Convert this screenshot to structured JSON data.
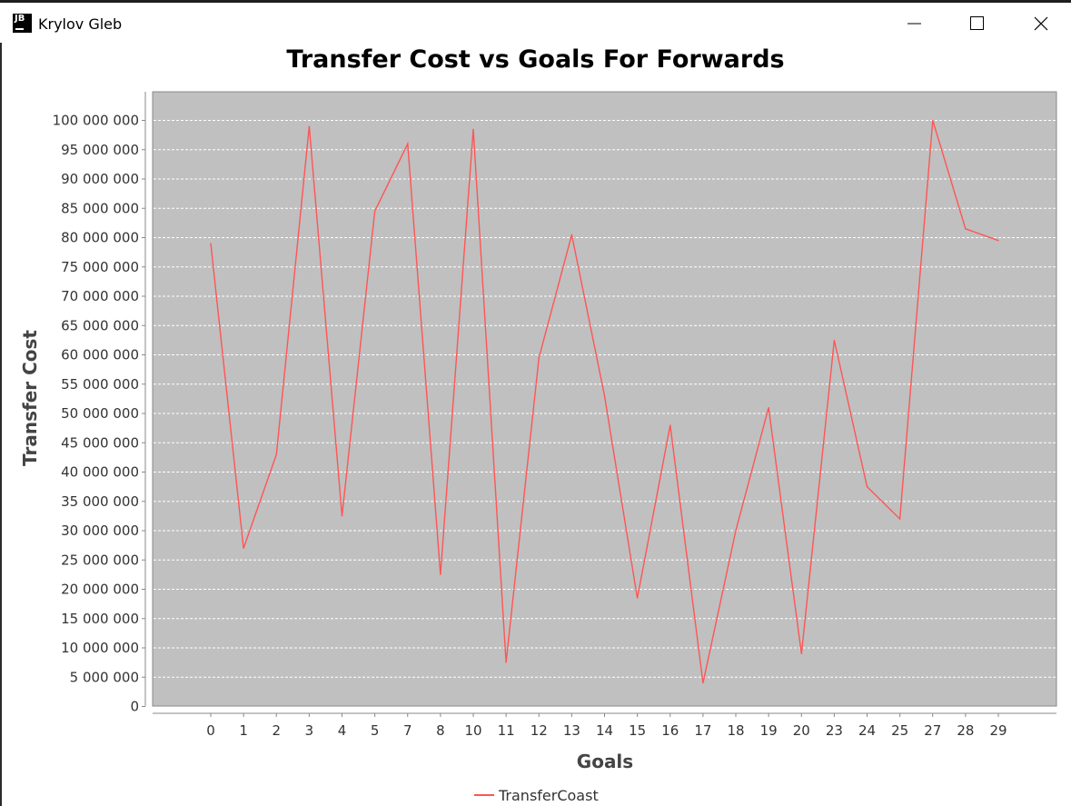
{
  "window": {
    "title": "Krylov Gleb",
    "icon_text": "JB",
    "buttons": [
      "minimize-icon",
      "maximize-icon",
      "close-icon"
    ]
  },
  "chart_data": {
    "type": "line",
    "title": "Transfer Cost vs Goals For Forwards",
    "xlabel": "Goals",
    "ylabel": "Transfer Cost",
    "categories": [
      "0",
      "1",
      "2",
      "3",
      "4",
      "5",
      "7",
      "8",
      "10",
      "11",
      "12",
      "13",
      "14",
      "15",
      "16",
      "17",
      "18",
      "19",
      "20",
      "23",
      "24",
      "25",
      "27",
      "28",
      "29"
    ],
    "series": [
      {
        "name": "TransferCoast",
        "color": "#ff5555",
        "values": [
          79000000,
          27000000,
          43000000,
          99000000,
          32500000,
          84500000,
          96000000,
          22500000,
          98500000,
          7500000,
          59500000,
          80500000,
          53000000,
          18500000,
          48000000,
          4000000,
          30000000,
          51000000,
          9000000,
          62500000,
          37500000,
          32000000,
          100000000,
          81500000,
          79500000
        ]
      }
    ],
    "ylim": [
      0,
      105000000
    ],
    "yticks": [
      0,
      5000000,
      10000000,
      15000000,
      20000000,
      25000000,
      30000000,
      35000000,
      40000000,
      45000000,
      50000000,
      55000000,
      60000000,
      65000000,
      70000000,
      75000000,
      80000000,
      85000000,
      90000000,
      95000000,
      100000000
    ],
    "ytick_labels": [
      "0",
      "5 000 000",
      "10 000 000",
      "15 000 000",
      "20 000 000",
      "25 000 000",
      "30 000 000",
      "35 000 000",
      "40 000 000",
      "45 000 000",
      "50 000 000",
      "55 000 000",
      "60 000 000",
      "65 000 000",
      "70 000 000",
      "75 000 000",
      "80 000 000",
      "85 000 000",
      "90 000 000",
      "95 000 000",
      "100 000 000"
    ],
    "grid": true,
    "legend_position": "bottom",
    "plot_background": "#c0c0c0",
    "grid_color": "#ffffff"
  }
}
